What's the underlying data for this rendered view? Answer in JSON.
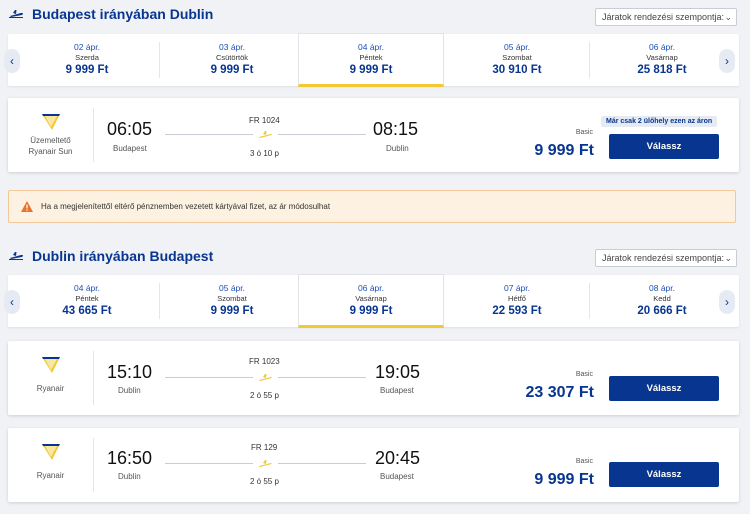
{
  "outbound": {
    "title": "Budapest irányában Dublin",
    "sort_label": "Járatok rendezési szempontja:",
    "dates": [
      {
        "date": "02 ápr.",
        "weekday": "Szerda",
        "price": "9 999 Ft",
        "selected": false
      },
      {
        "date": "03 ápr.",
        "weekday": "Csütörtök",
        "price": "9 999 Ft",
        "selected": false
      },
      {
        "date": "04 ápr.",
        "weekday": "Péntek",
        "price": "9 999 Ft",
        "selected": true
      },
      {
        "date": "05 ápr.",
        "weekday": "Szombat",
        "price": "30 910 Ft",
        "selected": false
      },
      {
        "date": "06 ápr.",
        "weekday": "Vasárnap",
        "price": "25 818 Ft",
        "selected": false
      }
    ],
    "flights": [
      {
        "operator_line1": "Üzemeltető",
        "operator_line2": "Ryanair Sun",
        "depart_time": "06:05",
        "depart_city": "Budapest",
        "flight_number": "FR 1024",
        "duration": "3 ó 10 p",
        "arrive_time": "08:15",
        "arrive_city": "Dublin",
        "seats_badge": "Már csak 2 ülőhely ezen az áron",
        "fare": "Basic",
        "price": "9 999 Ft",
        "button": "Válassz"
      }
    ]
  },
  "warning": {
    "text": "Ha a megjelenítettől eltérő pénznemben vezetett kártyával fizet, az ár módosulhat"
  },
  "inbound": {
    "title": "Dublin irányában Budapest",
    "sort_label": "Járatok rendezési szempontja:",
    "dates": [
      {
        "date": "04 ápr.",
        "weekday": "Péntek",
        "price": "43 665 Ft",
        "selected": false
      },
      {
        "date": "05 ápr.",
        "weekday": "Szombat",
        "price": "9 999 Ft",
        "selected": false
      },
      {
        "date": "06 ápr.",
        "weekday": "Vasárnap",
        "price": "9 999 Ft",
        "selected": true
      },
      {
        "date": "07 ápr.",
        "weekday": "Hétfő",
        "price": "22 593 Ft",
        "selected": false
      },
      {
        "date": "08 ápr.",
        "weekday": "Kedd",
        "price": "20 666 Ft",
        "selected": false
      }
    ],
    "flights": [
      {
        "operator_line1": "Ryanair",
        "depart_time": "15:10",
        "depart_city": "Dublin",
        "flight_number": "FR 1023",
        "duration": "2 ó 55 p",
        "arrive_time": "19:05",
        "arrive_city": "Budapest",
        "fare": "Basic",
        "price": "23 307 Ft",
        "button": "Válassz"
      },
      {
        "operator_line1": "Ryanair",
        "depart_time": "16:50",
        "depart_city": "Dublin",
        "flight_number": "FR 129",
        "duration": "2 ó 55 p",
        "arrive_time": "20:45",
        "arrive_city": "Budapest",
        "fare": "Basic",
        "price": "9 999 Ft",
        "button": "Válassz"
      }
    ]
  },
  "colors": {
    "brand": "#073590",
    "accent": "#f1c933",
    "warning": "#e8732c"
  },
  "icons": {
    "plane": "plane-icon",
    "logo": "ryanair-harp-logo",
    "warning": "warning-icon",
    "chevron": "chevron-icon"
  }
}
